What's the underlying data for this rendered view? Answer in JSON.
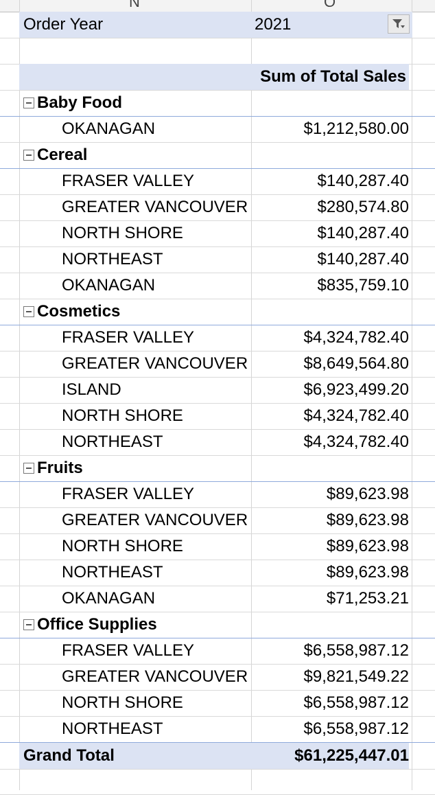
{
  "column_headers": [
    "N",
    "O"
  ],
  "filter": {
    "label": "Order Year",
    "value": "2021",
    "icon": "filter-dropdown-icon"
  },
  "value_header": "Sum of Total Sales",
  "categories": [
    {
      "name": "Baby Food",
      "rows": [
        {
          "region": "OKANAGAN",
          "value": "$1,212,580.00"
        }
      ]
    },
    {
      "name": "Cereal",
      "rows": [
        {
          "region": "FRASER VALLEY",
          "value": "$140,287.40"
        },
        {
          "region": "GREATER VANCOUVER",
          "value": "$280,574.80"
        },
        {
          "region": "NORTH SHORE",
          "value": "$140,287.40"
        },
        {
          "region": "NORTHEAST",
          "value": "$140,287.40"
        },
        {
          "region": "OKANAGAN",
          "value": "$835,759.10"
        }
      ]
    },
    {
      "name": "Cosmetics",
      "rows": [
        {
          "region": "FRASER VALLEY",
          "value": "$4,324,782.40"
        },
        {
          "region": "GREATER VANCOUVER",
          "value": "$8,649,564.80"
        },
        {
          "region": "ISLAND",
          "value": "$6,923,499.20"
        },
        {
          "region": "NORTH SHORE",
          "value": "$4,324,782.40"
        },
        {
          "region": "NORTHEAST",
          "value": "$4,324,782.40"
        }
      ]
    },
    {
      "name": "Fruits",
      "rows": [
        {
          "region": "FRASER VALLEY",
          "value": "$89,623.98"
        },
        {
          "region": "GREATER VANCOUVER",
          "value": "$89,623.98"
        },
        {
          "region": "NORTH SHORE",
          "value": "$89,623.98"
        },
        {
          "region": "NORTHEAST",
          "value": "$89,623.98"
        },
        {
          "region": "OKANAGAN",
          "value": "$71,253.21"
        }
      ]
    },
    {
      "name": "Office Supplies",
      "rows": [
        {
          "region": "FRASER VALLEY",
          "value": "$6,558,987.12"
        },
        {
          "region": "GREATER VANCOUVER",
          "value": "$9,821,549.22"
        },
        {
          "region": "NORTH SHORE",
          "value": "$6,558,987.12"
        },
        {
          "region": "NORTHEAST",
          "value": "$6,558,987.12"
        }
      ]
    }
  ],
  "grand_total": {
    "label": "Grand Total",
    "value": "$61,225,447.01"
  },
  "colors": {
    "header_fill": "#dce3f3",
    "grid": "#d4d4d4",
    "pivot_border": "#8ea9db"
  }
}
